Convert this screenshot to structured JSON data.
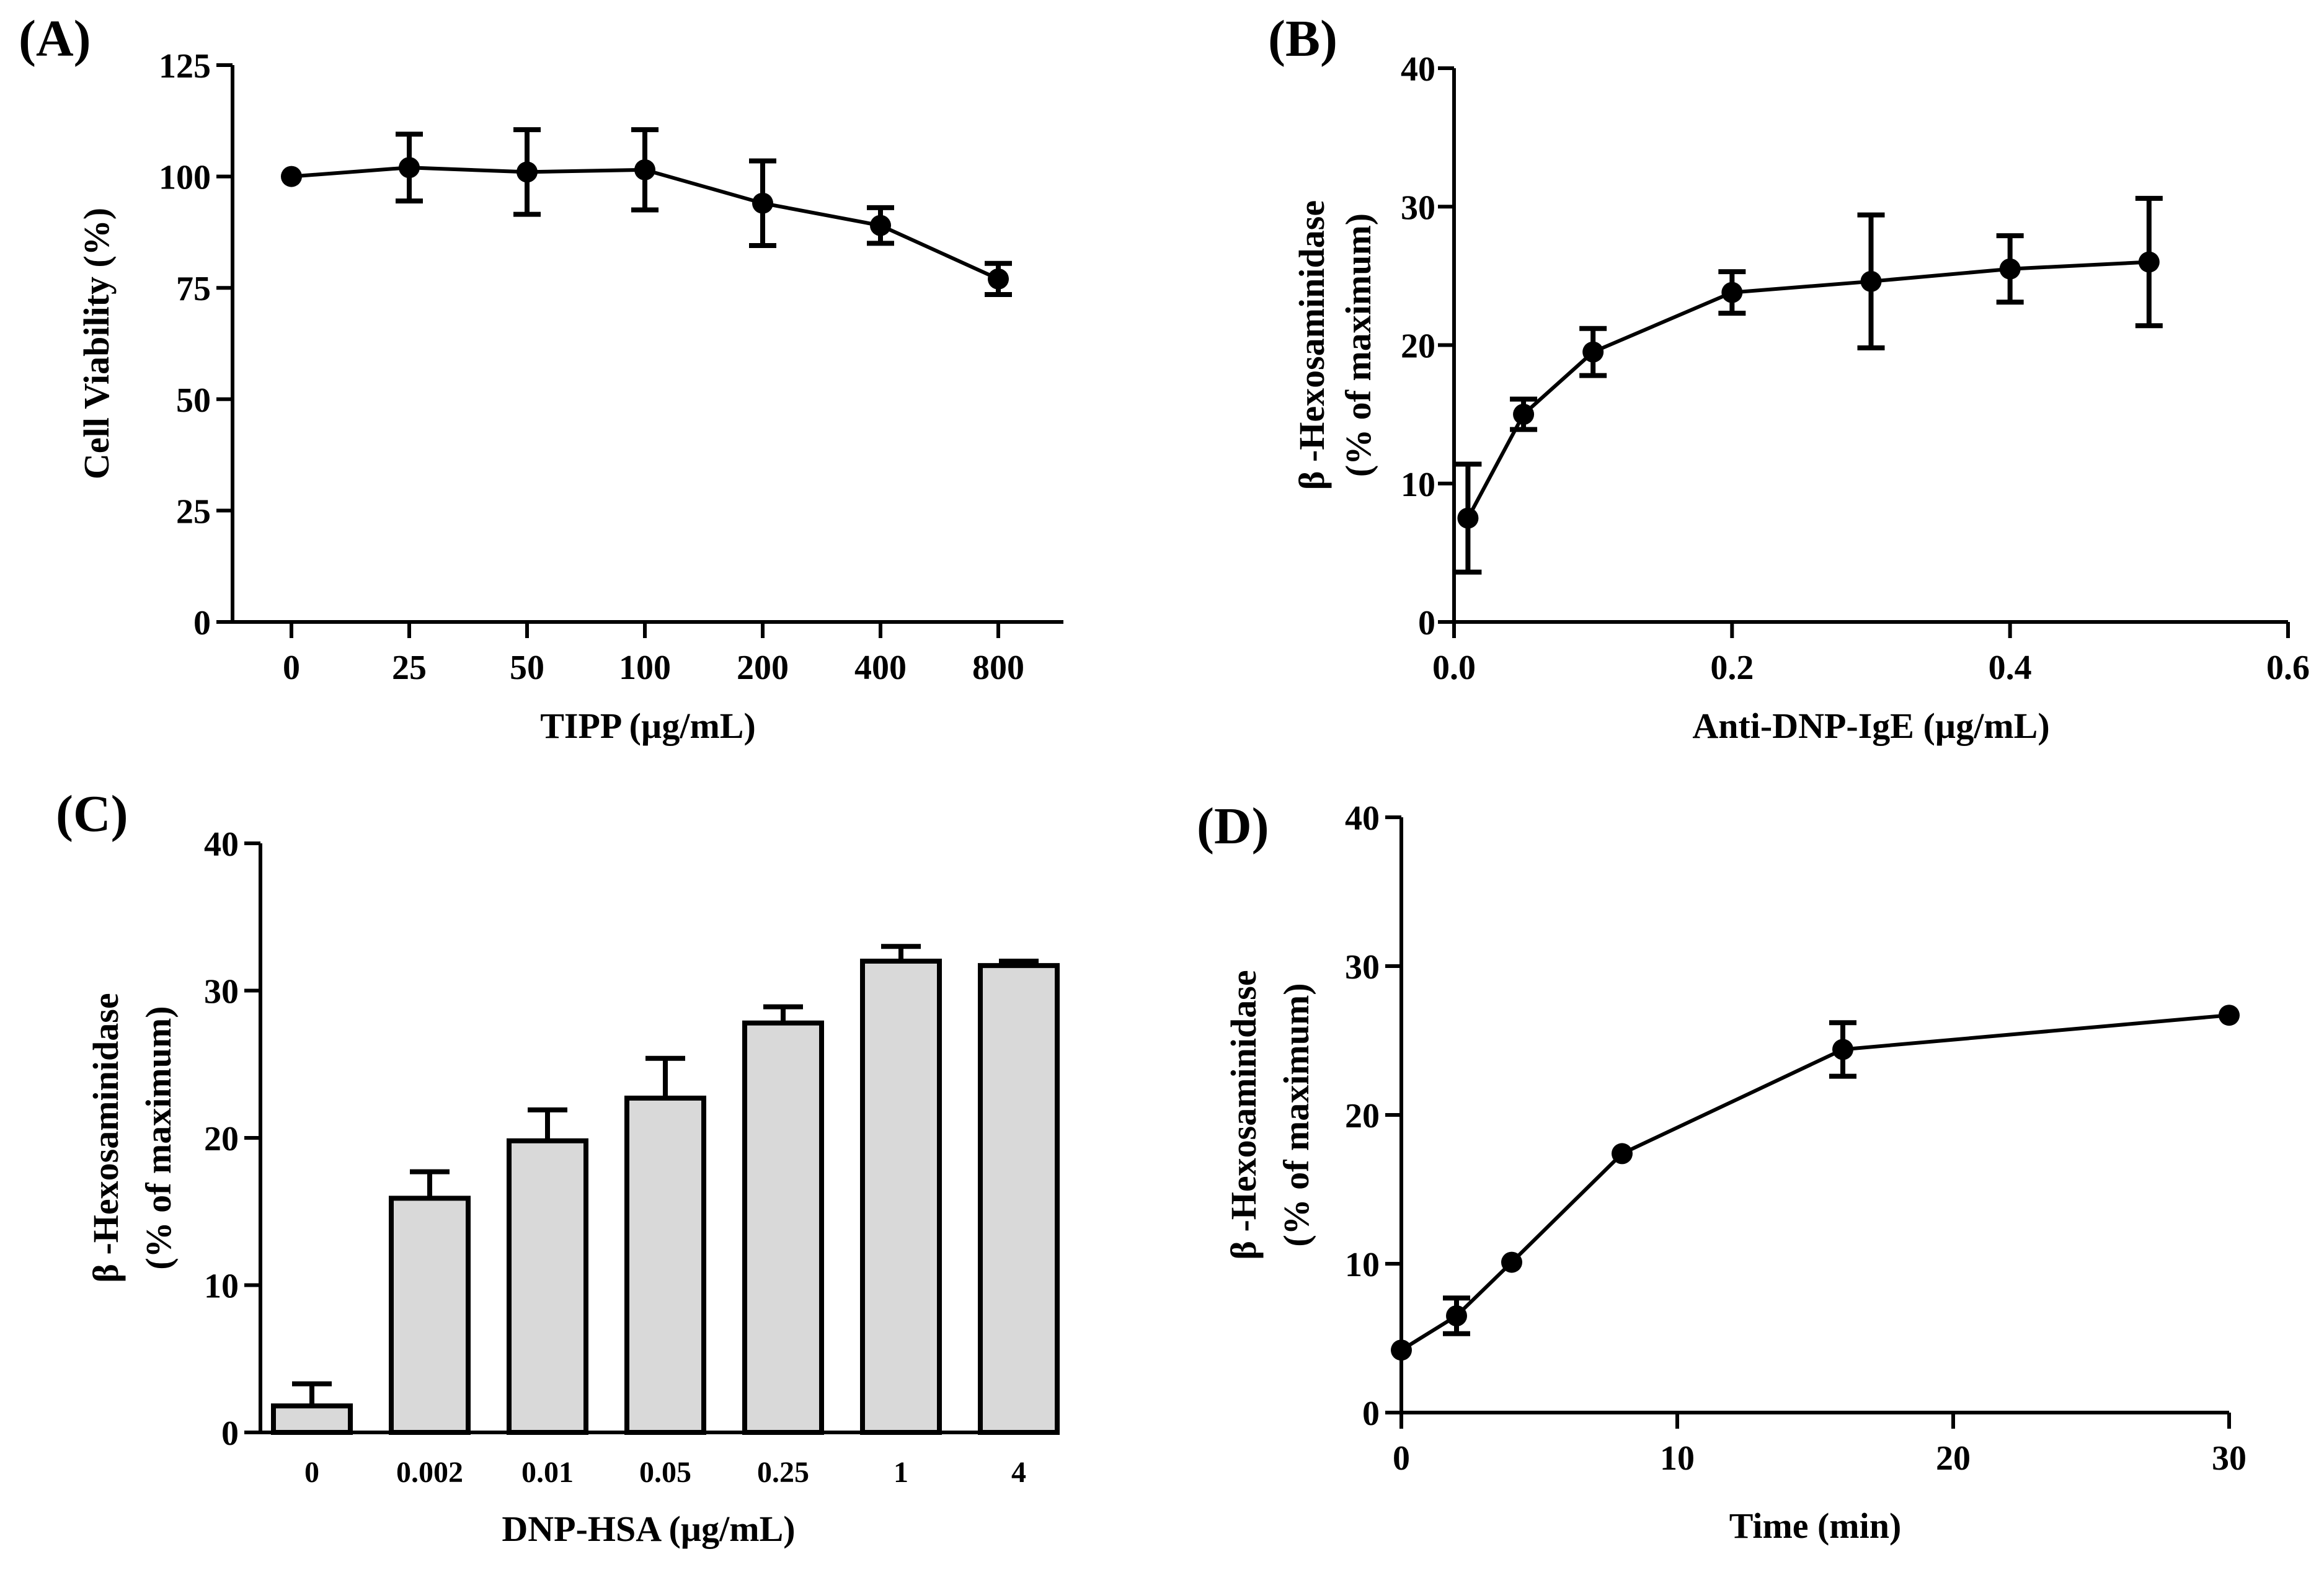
{
  "chart_data": [
    {
      "panel": "(A)",
      "type": "line",
      "xlabel": "TIPP (µg/mL)",
      "ylabel": "Cell Viability (%)",
      "categories": [
        "0",
        "25",
        "50",
        "100",
        "200",
        "400",
        "800"
      ],
      "values": [
        100,
        102,
        101,
        101.5,
        94,
        89,
        77
      ],
      "errors": [
        0,
        7.5,
        9.5,
        9,
        9.5,
        4,
        3.5
      ],
      "ylim": [
        0,
        125
      ],
      "yticks": [
        0,
        25,
        50,
        75,
        100,
        125
      ]
    },
    {
      "panel": "(B)",
      "type": "line",
      "xlabel": "Anti-DNP-IgE (µg/mL)",
      "ylabel": [
        "β -Hexosaminidase",
        "(% of maximum)"
      ],
      "x": [
        0.01,
        0.05,
        0.1,
        0.2,
        0.3,
        0.4,
        0.5
      ],
      "values": [
        7.5,
        15,
        19.5,
        23.8,
        24.6,
        25.5,
        26
      ],
      "errors": [
        3.9,
        1.1,
        1.7,
        1.5,
        4.8,
        2.4,
        4.6
      ],
      "xlim": [
        0,
        0.6
      ],
      "xticks": [
        0.0,
        0.2,
        0.4,
        0.6
      ],
      "xtick_labels": [
        "0.0",
        "0.2",
        "0.4",
        "0.6"
      ],
      "ylim": [
        0,
        40
      ],
      "yticks": [
        0,
        10,
        20,
        30,
        40
      ]
    },
    {
      "panel": "(C)",
      "type": "bar",
      "xlabel": "DNP-HSA (µg/mL)",
      "ylabel": [
        "β -Hexosaminidase",
        "(% of maximum)"
      ],
      "categories": [
        "0",
        "0.002",
        "0.01",
        "0.05",
        "0.25",
        "1",
        "4"
      ],
      "values": [
        1.8,
        15.9,
        19.8,
        22.7,
        27.8,
        32,
        31.7
      ],
      "errors": [
        1.5,
        1.8,
        2.1,
        2.7,
        1.1,
        1.0,
        0.3
      ],
      "ylim": [
        0,
        40
      ],
      "yticks": [
        0,
        10,
        20,
        30,
        40
      ]
    },
    {
      "panel": "(D)",
      "type": "line",
      "xlabel": "Time (min)",
      "ylabel": [
        "β -Hexosaminidase",
        "(% of maximum)"
      ],
      "x": [
        0,
        2,
        4,
        8,
        16,
        30
      ],
      "values": [
        4.2,
        6.5,
        10.1,
        17.4,
        24.4,
        26.7
      ],
      "errors": [
        0,
        1.2,
        0,
        0,
        1.8,
        0
      ],
      "xlim": [
        0,
        30
      ],
      "xticks": [
        0,
        10,
        20,
        30
      ],
      "xtick_labels": [
        "0",
        "10",
        "20",
        "30"
      ],
      "ylim": [
        0,
        40
      ],
      "yticks": [
        0,
        10,
        20,
        30,
        40
      ]
    }
  ]
}
